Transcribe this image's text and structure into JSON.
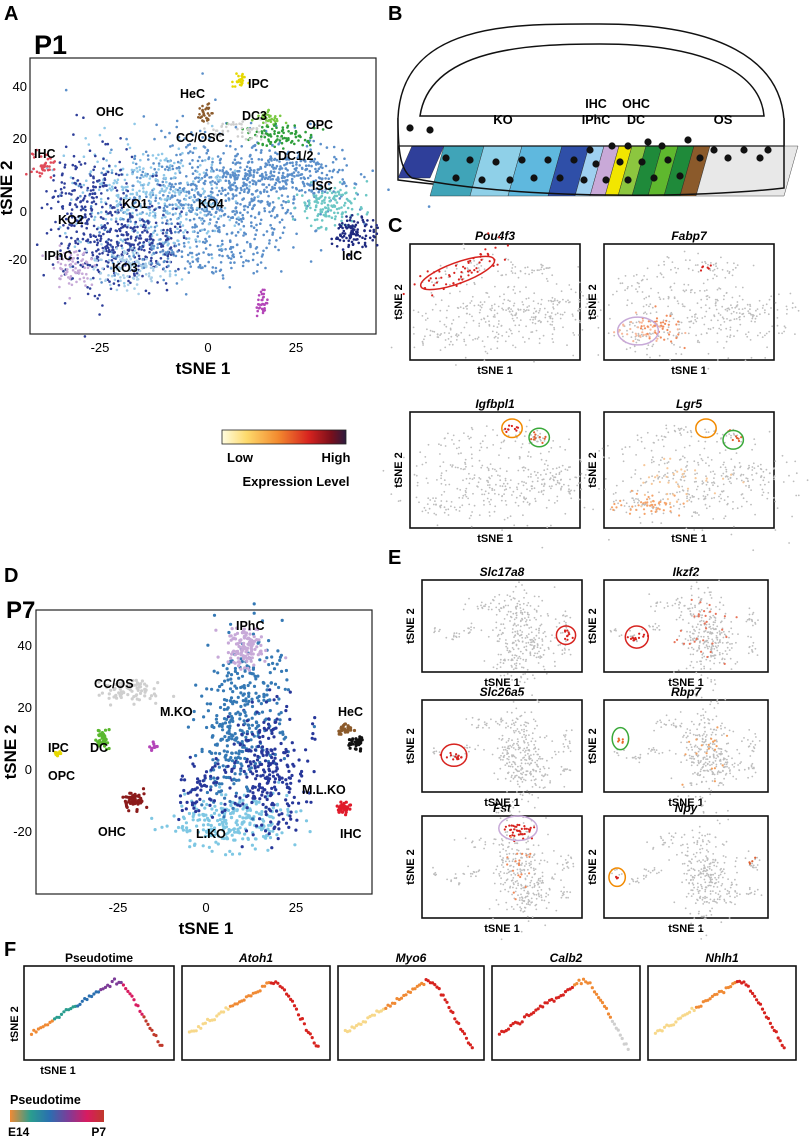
{
  "panels": {
    "A": {
      "letter": "A",
      "stage": "P1",
      "xlabel": "tSNE 1",
      "ylabel": "tSNE 2",
      "xticks": [
        "-25",
        "0",
        "25"
      ],
      "yticks": [
        "40",
        "20",
        "0",
        "-20"
      ],
      "clusters": [
        "OHC",
        "HeC",
        "IPC",
        "DC3",
        "OPC",
        "CC/OSC",
        "DC1/2",
        "IHC",
        "ISC",
        "KO1",
        "KO4",
        "KO2",
        "IPhC",
        "KO3",
        "IdC"
      ]
    },
    "B": {
      "letter": "B",
      "regions": [
        "KO",
        "IHC",
        "IPhC",
        "OHC",
        "DC",
        "OS"
      ]
    },
    "C": {
      "letter": "C",
      "genes": [
        "Pou4f3",
        "Fabp7",
        "Igfbpl1",
        "Lgr5"
      ],
      "xlabel": "tSNE 1",
      "ylabel": "tSNE 2"
    },
    "colorbar": {
      "low": "Low",
      "high": "High",
      "title": "Expression Level",
      "colors": [
        "#fffde0",
        "#fdd96b",
        "#f38b2f",
        "#d7231f",
        "#7a0f1b",
        "#2b1a3e"
      ]
    },
    "D": {
      "letter": "D",
      "stage": "P7",
      "xlabel": "tSNE 1",
      "ylabel": "tSNE 2",
      "xticks": [
        "-25",
        "0",
        "25"
      ],
      "yticks": [
        "40",
        "20",
        "0",
        "-20"
      ],
      "clusters": [
        "IPhC",
        "CC/OS",
        "M.KO",
        "HeC",
        "IPC",
        "OPC",
        "DC",
        "M.L.KO",
        "OHC",
        "L.KO",
        "IHC"
      ]
    },
    "E": {
      "letter": "E",
      "genes": [
        "Slc17a8",
        "Ikzf2",
        "Slc26a5",
        "Rbp7",
        "Fst",
        "Npy"
      ],
      "xlabel": "tSNE 1",
      "ylabel": "tSNE 2"
    },
    "F": {
      "letter": "F",
      "titles": [
        "Pseudotime",
        "Atoh1",
        "Myo6",
        "Calb2",
        "Nhlh1"
      ],
      "xlabel": "tSNE 1",
      "ylabel": "tSNE 2",
      "legend_title": "Pseudotime",
      "legend_start": "E14",
      "legend_end": "P7",
      "legend_colors": [
        "#f08a34",
        "#2a9d8f",
        "#2a6fb0",
        "#7d3c98",
        "#d81b60",
        "#c0392b"
      ]
    }
  },
  "cluster_colors": {
    "OHC": "#8b1a1a",
    "HeC": "#8b5a2b",
    "IPC": "#e6d800",
    "DC3": "#7ac943",
    "OPC": "#2e9e3a",
    "CCOSC": "#cfcfcf",
    "DC12": "#5ab82e",
    "IHC": "#e04b5a",
    "ISC": "#6cc7c5",
    "KO1": "#8fc8e8",
    "KO4": "#5b8fca",
    "KO2": "#2f3f9a",
    "IPhC": "#c7a9d8",
    "KO3": "#a9cfe8",
    "IdC": "#1f2a80",
    "LKO": "#7ec7e3",
    "MKO": "#3579b5",
    "MLKO": "#27379a",
    "magenta": "#b446b8"
  }
}
